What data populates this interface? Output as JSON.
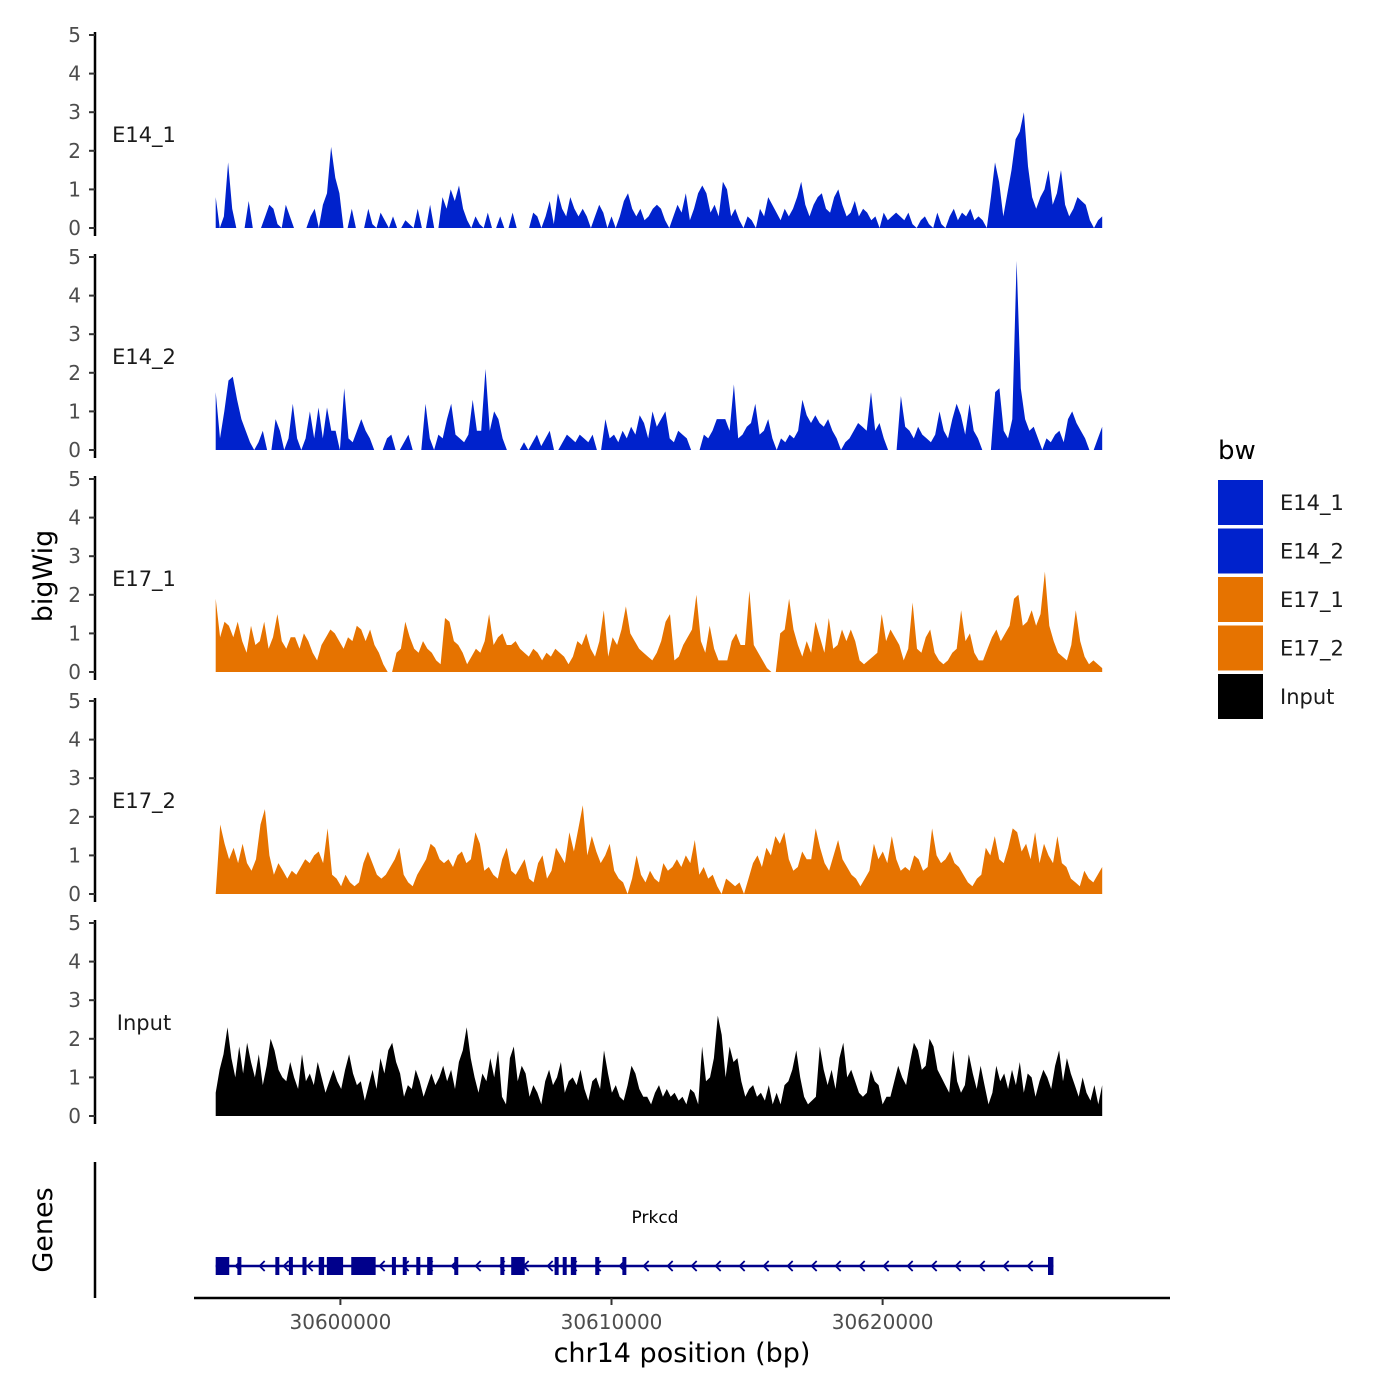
{
  "chart_data": {
    "type": "area",
    "title": "",
    "ylabel": "bigWig",
    "xlabel": "chr14 position (bp)",
    "genes_label": "Genes",
    "xlim": [
      30594600,
      30630600
    ],
    "x_ticks": [
      30600000,
      30610000,
      30620000
    ],
    "x_tick_labels": [
      "30600000",
      "30610000",
      "30620000"
    ],
    "ylim": [
      0,
      5
    ],
    "y_ticks": [
      0,
      1,
      2,
      3,
      4,
      5
    ],
    "y_tick_labels": [
      "0",
      "1",
      "2",
      "3",
      "4",
      "5"
    ],
    "track_range": [
      30595400,
      30628100
    ],
    "colors": {
      "E14": "#0022CC",
      "E17": "#E67300",
      "Input": "#000000",
      "gene": "#00008B"
    },
    "tracks": [
      {
        "name": "E14_1",
        "color": "#0022CC",
        "values": [
          0.8,
          0,
          0.3,
          1.7,
          0.5,
          0,
          0,
          0,
          0.7,
          0,
          0,
          0,
          0.3,
          0.6,
          0.5,
          0.1,
          0,
          0.6,
          0.3,
          0,
          0,
          0,
          0,
          0.3,
          0.5,
          0,
          0.6,
          0.9,
          2.1,
          1.3,
          0.9,
          0,
          0,
          0.5,
          0,
          0,
          0,
          0.5,
          0.1,
          0,
          0.4,
          0.2,
          0,
          0.3,
          0,
          0,
          0.2,
          0.1,
          0,
          0.5,
          0,
          0,
          0.6,
          0,
          0,
          0.8,
          0.5,
          1.0,
          0.7,
          1.1,
          0.5,
          0.2,
          0,
          0.3,
          0.1,
          0,
          0.4,
          0,
          0,
          0.3,
          0,
          0,
          0.4,
          0,
          0,
          0,
          0,
          0.4,
          0.3,
          0,
          0.3,
          0.7,
          0.1,
          0.9,
          0.5,
          0.3,
          0.8,
          0.5,
          0.3,
          0.5,
          0.3,
          0,
          0.3,
          0.6,
          0.4,
          0,
          0.3,
          0,
          0.3,
          0.7,
          0.9,
          0.5,
          0.3,
          0.5,
          0.2,
          0.3,
          0.5,
          0.6,
          0.5,
          0.2,
          0,
          0.3,
          0.6,
          0.4,
          0.9,
          0.2,
          0.5,
          0.9,
          1.1,
          0.9,
          0.4,
          0.6,
          0.3,
          1.2,
          1.0,
          0.3,
          0.5,
          0.2,
          0,
          0.3,
          0.2,
          0,
          0.5,
          0.3,
          0.8,
          0.6,
          0.4,
          0.2,
          0.5,
          0.3,
          0.5,
          0.8,
          1.2,
          0.6,
          0.3,
          0.6,
          0.8,
          0.9,
          0.5,
          0.4,
          0.8,
          1.0,
          0.6,
          0.3,
          0.4,
          0.7,
          0.3,
          0.5,
          0.4,
          0.2,
          0.3,
          0,
          0.4,
          0.2,
          0.3,
          0.4,
          0.3,
          0.2,
          0.4,
          0.1,
          0,
          0.2,
          0.3,
          0.1,
          0,
          0.4,
          0.1,
          0,
          0.3,
          0.5,
          0.2,
          0.4,
          0.3,
          0.5,
          0.2,
          0.3,
          0.2,
          0,
          0.8,
          1.7,
          1.2,
          0.3,
          0.9,
          1.5,
          2.3,
          2.5,
          3.0,
          1.6,
          0.8,
          0.5,
          0.8,
          1.0,
          1.5,
          0.6,
          0.9,
          1.5,
          0.6,
          0.3,
          0.5,
          0.8,
          0.7,
          0.6,
          0.2,
          0,
          0.2,
          0.3
        ]
      },
      {
        "name": "E14_2",
        "color": "#0022CC",
        "values": [
          1.5,
          0.3,
          1.0,
          1.8,
          1.9,
          1.3,
          0.8,
          0.5,
          0.2,
          0,
          0.2,
          0.5,
          0,
          0,
          0.8,
          0.5,
          0,
          0.3,
          1.2,
          0.3,
          0,
          0.3,
          1.0,
          0.3,
          1.1,
          0.3,
          1.1,
          0.5,
          0.5,
          0,
          1.6,
          0.3,
          0.2,
          0.5,
          0.8,
          0.5,
          0.3,
          0,
          0,
          0,
          0.3,
          0.4,
          0,
          0,
          0.2,
          0.4,
          0,
          0,
          0,
          1.2,
          0.3,
          0,
          0.4,
          0.3,
          0.8,
          1.2,
          0.4,
          0.3,
          0.2,
          0.4,
          1.3,
          0.5,
          0.5,
          2.1,
          0.5,
          1.0,
          0.8,
          0.3,
          0,
          0,
          0,
          0,
          0.2,
          0,
          0.2,
          0.4,
          0.1,
          0.3,
          0.5,
          0,
          0,
          0.2,
          0.4,
          0.3,
          0.2,
          0.4,
          0.3,
          0.2,
          0.4,
          0,
          0,
          0.8,
          0.3,
          0.4,
          0.2,
          0.5,
          0.3,
          0.6,
          0.4,
          0.9,
          0.7,
          0.3,
          1.0,
          0.6,
          0.8,
          1.0,
          0.3,
          0.2,
          0.5,
          0.4,
          0.3,
          0,
          0,
          0,
          0.4,
          0.3,
          0.5,
          0.8,
          0.8,
          0.8,
          0.5,
          1.7,
          0.3,
          0.4,
          0.6,
          0.7,
          1.2,
          0.4,
          0.5,
          0.8,
          0.3,
          0,
          0.3,
          0.2,
          0.4,
          0.3,
          0.5,
          1.3,
          0.9,
          0.7,
          0.9,
          0.7,
          0.6,
          0.8,
          0.5,
          0.3,
          0,
          0.2,
          0.3,
          0.5,
          0.7,
          0.6,
          0.5,
          1.5,
          0.5,
          0.7,
          0.3,
          0,
          0,
          0,
          1.4,
          0.6,
          0.5,
          0.3,
          0.6,
          0.4,
          0.3,
          0.2,
          0.4,
          1.0,
          0.5,
          0.3,
          0.8,
          1.2,
          0.9,
          0.4,
          1.2,
          0.5,
          0.3,
          0,
          0,
          0,
          1.5,
          1.6,
          0.5,
          0.3,
          0.8,
          4.9,
          1.6,
          0.8,
          0.5,
          0.6,
          0.3,
          0,
          0.3,
          0.2,
          0.4,
          0.5,
          0.2,
          0.8,
          1.0,
          0.7,
          0.5,
          0.3,
          0,
          0,
          0.3,
          0.6
        ]
      },
      {
        "name": "E17_1",
        "color": "#E67300",
        "values": [
          1.9,
          0.9,
          1.3,
          1.2,
          0.9,
          1.3,
          0.8,
          0.5,
          1.2,
          0.7,
          0.8,
          1.3,
          0.6,
          0.9,
          1.5,
          0.8,
          0.6,
          0.9,
          0.9,
          0.6,
          1.0,
          0.8,
          0.5,
          0.3,
          0.7,
          0.9,
          1.1,
          1.0,
          0.8,
          0.6,
          0.9,
          0.8,
          1.2,
          1.1,
          0.8,
          1.1,
          0.7,
          0.5,
          0.2,
          0,
          0,
          0.5,
          0.6,
          1.3,
          0.9,
          0.6,
          0.5,
          0.8,
          0.6,
          0.5,
          0.3,
          0.2,
          1.4,
          1.3,
          0.8,
          0.7,
          0.5,
          0.2,
          0.4,
          0.6,
          0.5,
          0.8,
          1.5,
          0.7,
          0.9,
          1.0,
          0.7,
          0.7,
          0.8,
          0.6,
          0.5,
          0.4,
          0.6,
          0.5,
          0.3,
          0.5,
          0.4,
          0.6,
          0.5,
          0.4,
          0.2,
          0.4,
          0.8,
          0.7,
          1.0,
          0.6,
          0.4,
          0.8,
          1.6,
          0.4,
          0.9,
          0.7,
          1.1,
          1.7,
          1.0,
          0.8,
          0.6,
          0.5,
          0.4,
          0.3,
          0.5,
          0.8,
          1.3,
          1.5,
          0.3,
          0.4,
          0.7,
          0.9,
          1.1,
          2.0,
          0.8,
          0.5,
          1.2,
          0.6,
          0.3,
          0.3,
          0.3,
          0.8,
          1.0,
          0.7,
          0.7,
          2.1,
          0.7,
          0.5,
          0.3,
          0.1,
          0,
          0,
          1.0,
          1.1,
          1.9,
          1.1,
          0.7,
          0.4,
          0.8,
          0.5,
          1.3,
          0.9,
          0.5,
          1.4,
          0.6,
          0.7,
          1.1,
          0.8,
          1.1,
          0.8,
          0.3,
          0.2,
          0.3,
          0.4,
          0.5,
          1.5,
          0.8,
          1.1,
          0.9,
          0.7,
          0.3,
          0.6,
          1.8,
          0.6,
          0.5,
          0.9,
          1.1,
          0.5,
          0.3,
          0.2,
          0.3,
          0.5,
          0.6,
          1.6,
          0.8,
          1.0,
          0.5,
          0.3,
          0.3,
          0.6,
          0.9,
          1.1,
          0.8,
          1.0,
          1.2,
          1.9,
          2.0,
          1.2,
          1.3,
          1.6,
          1.2,
          1.5,
          2.6,
          1.2,
          0.8,
          0.5,
          0.4,
          0.3,
          0.7,
          1.6,
          0.8,
          0.4,
          0.2,
          0.3,
          0.2,
          0.1
        ]
      },
      {
        "name": "E17_2",
        "color": "#E67300",
        "values": [
          0,
          1.8,
          1.3,
          0.9,
          1.2,
          0.8,
          1.3,
          0.8,
          0.6,
          0.9,
          1.8,
          2.2,
          1.0,
          0.5,
          0.8,
          0.6,
          0.4,
          0.6,
          0.5,
          0.7,
          0.9,
          0.8,
          1.0,
          1.1,
          0.8,
          1.7,
          0.5,
          0.4,
          0.2,
          0.5,
          0.3,
          0.2,
          0.3,
          0.8,
          1.1,
          0.8,
          0.5,
          0.4,
          0.5,
          0.7,
          0.9,
          1.2,
          0.5,
          0.3,
          0.2,
          0.5,
          0.7,
          0.9,
          1.3,
          1.2,
          0.9,
          0.8,
          0.9,
          0.7,
          1.0,
          1.1,
          0.8,
          0.9,
          1.6,
          1.3,
          0.6,
          0.7,
          0.5,
          0.4,
          0.9,
          1.2,
          0.6,
          0.5,
          0.7,
          0.9,
          0.4,
          0.3,
          0.8,
          1.0,
          0.4,
          0.6,
          1.2,
          1.0,
          0.8,
          1.6,
          1.1,
          1.7,
          2.3,
          1.0,
          1.5,
          1.1,
          0.8,
          1.0,
          1.3,
          0.6,
          0.4,
          0.3,
          0,
          0.4,
          1.0,
          0.5,
          0.3,
          0.6,
          0.4,
          0.3,
          0.8,
          0.6,
          0.7,
          0.9,
          0.7,
          1.0,
          0.8,
          1.4,
          0.5,
          0.7,
          0.4,
          0.5,
          0.2,
          0,
          0.4,
          0.3,
          0.2,
          0.3,
          0,
          0.4,
          0.8,
          1.0,
          0.7,
          1.2,
          1.0,
          1.5,
          1.3,
          1.6,
          0.9,
          0.6,
          0.7,
          1.1,
          0.9,
          0.9,
          1.7,
          1.2,
          0.8,
          0.6,
          1.0,
          1.4,
          0.9,
          0.7,
          0.5,
          0.4,
          0.2,
          0.4,
          0.6,
          1.3,
          0.9,
          1.1,
          0.8,
          1.5,
          0.9,
          0.6,
          0.7,
          0.6,
          1.0,
          0.9,
          0.6,
          0.7,
          1.7,
          1.0,
          0.8,
          0.9,
          1.1,
          0.8,
          0.7,
          0.5,
          0.3,
          0.2,
          0.4,
          0.5,
          1.2,
          1.0,
          1.5,
          0.9,
          0.8,
          1.2,
          1.7,
          1.6,
          1.1,
          1.3,
          0.9,
          1.6,
          0.8,
          1.3,
          1.0,
          0.8,
          1.5,
          0.8,
          0.7,
          0.4,
          0.3,
          0.2,
          0.6,
          0.4,
          0.3,
          0.5,
          0.7
        ]
      },
      {
        "name": "Input",
        "color": "#000000",
        "values": [
          0.6,
          1.2,
          1.6,
          2.3,
          1.5,
          1.0,
          1.8,
          1.1,
          1.9,
          1.4,
          1.0,
          1.6,
          0.8,
          1.3,
          2.0,
          1.7,
          1.2,
          1.0,
          0.9,
          1.4,
          1.0,
          0.7,
          1.6,
          0.9,
          1.1,
          0.8,
          1.4,
          1.0,
          0.6,
          0.9,
          1.2,
          0.9,
          0.7,
          1.2,
          1.6,
          1.1,
          0.8,
          0.9,
          0.4,
          0.8,
          1.2,
          0.7,
          1.5,
          1.1,
          1.7,
          1.9,
          1.4,
          1.1,
          0.5,
          0.8,
          0.7,
          1.2,
          0.9,
          0.5,
          0.8,
          1.1,
          0.8,
          1.0,
          1.3,
          0.9,
          1.2,
          0.7,
          1.4,
          1.7,
          2.3,
          1.5,
          1.0,
          0.6,
          1.1,
          0.9,
          1.5,
          1.0,
          1.7,
          0.5,
          0.3,
          1.5,
          1.8,
          0.9,
          1.3,
          1.1,
          0.5,
          0.8,
          0.6,
          0.3,
          0.9,
          1.2,
          0.8,
          1.0,
          1.4,
          0.6,
          0.9,
          1.0,
          0.8,
          1.2,
          0.7,
          0.4,
          0.9,
          1.0,
          0.7,
          1.7,
          1.1,
          0.6,
          0.8,
          0.5,
          0.4,
          0.8,
          1.3,
          1.1,
          0.7,
          0.5,
          0.5,
          0.3,
          0.6,
          0.8,
          0.5,
          0.7,
          0.5,
          0.6,
          0.4,
          0.5,
          0.3,
          0.7,
          0.6,
          0.3,
          1.8,
          0.9,
          1.0,
          1.5,
          2.6,
          2.1,
          1.0,
          1.8,
          1.4,
          1.5,
          0.9,
          0.5,
          0.7,
          0.8,
          0.5,
          0.6,
          0.4,
          0.8,
          0.3,
          0.6,
          0.3,
          0.8,
          0.9,
          1.2,
          1.7,
          1.0,
          0.5,
          0.3,
          0.4,
          0.5,
          1.8,
          1.2,
          0.8,
          1.2,
          0.7,
          1.5,
          1.9,
          1.0,
          1.2,
          0.9,
          0.6,
          0.5,
          0.6,
          1.2,
          0.9,
          0.8,
          0.3,
          0.5,
          0.5,
          0.9,
          1.3,
          1.0,
          0.8,
          1.4,
          1.9,
          1.7,
          1.2,
          1.3,
          2.0,
          1.8,
          1.2,
          1.0,
          0.8,
          0.6,
          1.7,
          0.9,
          0.6,
          0.8,
          1.6,
          1.1,
          0.7,
          1.3,
          0.8,
          0.3,
          0.6,
          1.3,
          0.9,
          1.1,
          0.7,
          1.2,
          0.8,
          1.4,
          0.6,
          1.1,
          1.0,
          0.5,
          0.9,
          1.2,
          1.0,
          0.7,
          1.3,
          1.7,
          0.9,
          1.5,
          1.1,
          0.8,
          0.5,
          1.0,
          0.6,
          0.4,
          0.8,
          0.3,
          0.8
        ]
      }
    ],
    "legend": {
      "title": "bw",
      "position": "right",
      "items": [
        {
          "label": "E14_1",
          "color": "#0022CC"
        },
        {
          "label": "E14_2",
          "color": "#0022CC"
        },
        {
          "label": "E17_1",
          "color": "#E67300"
        },
        {
          "label": "E17_2",
          "color": "#E67300"
        },
        {
          "label": "Input",
          "color": "#000000"
        }
      ]
    },
    "gene": {
      "name": "Prkcd",
      "strand": "-",
      "start": 30595400,
      "end": 30626300,
      "exons": [
        [
          30595400,
          30595900
        ],
        [
          30596200,
          30596300
        ],
        [
          30597600,
          30597700
        ],
        [
          30598100,
          30598200
        ],
        [
          30598600,
          30598750
        ],
        [
          30599200,
          30599400
        ],
        [
          30599500,
          30600100
        ],
        [
          30600400,
          30601300
        ],
        [
          30601900,
          30602000
        ],
        [
          30602300,
          30602400
        ],
        [
          30602800,
          30602900
        ],
        [
          30603200,
          30603400
        ],
        [
          30604200,
          30604300
        ],
        [
          30605900,
          30606000
        ],
        [
          30606300,
          30606800
        ],
        [
          30607900,
          30608050
        ],
        [
          30608200,
          30608300
        ],
        [
          30608500,
          30608700
        ],
        [
          30609400,
          30609550
        ],
        [
          30610400,
          30610500
        ],
        [
          30626100,
          30626300
        ]
      ]
    }
  }
}
